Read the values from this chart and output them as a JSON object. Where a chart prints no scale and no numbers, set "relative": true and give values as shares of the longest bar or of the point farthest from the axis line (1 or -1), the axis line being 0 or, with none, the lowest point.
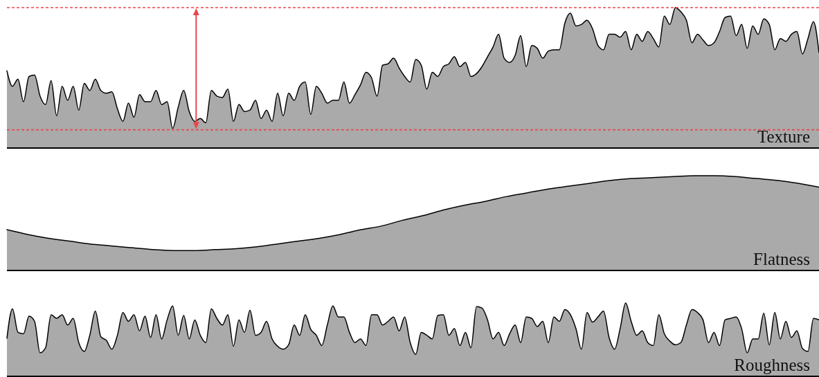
{
  "chart_data": [
    {
      "type": "area",
      "title": "Texture",
      "relative": true,
      "color": "#aaaaaa",
      "categories": [
        null,
        null,
        null,
        null,
        null,
        null,
        null,
        null,
        null,
        null,
        null,
        null,
        null,
        null,
        null,
        null,
        null,
        null,
        null,
        null,
        null,
        null,
        null,
        null,
        null,
        null,
        null,
        null,
        null,
        null,
        null,
        null,
        null,
        null,
        null,
        null,
        null,
        null,
        null,
        null,
        null,
        null,
        null,
        null,
        null,
        null,
        null,
        null,
        null,
        null,
        null,
        null,
        null,
        null,
        null,
        null,
        null,
        null,
        null,
        null,
        null,
        null,
        null,
        null,
        null,
        null,
        null,
        null,
        null,
        null,
        null,
        null,
        null,
        null,
        null,
        null,
        null,
        null,
        null,
        null,
        null,
        null,
        null,
        null,
        null,
        null,
        null,
        null,
        null,
        null,
        null,
        null,
        null,
        null,
        null,
        null,
        null,
        null,
        null,
        null,
        null,
        null,
        null,
        null,
        null,
        null,
        null,
        null,
        null,
        null,
        null,
        null,
        null,
        null,
        null,
        null,
        null,
        null,
        null,
        null,
        null,
        null,
        null,
        null,
        null,
        null,
        null,
        null,
        null,
        null,
        null,
        null,
        null,
        null,
        null,
        null,
        null,
        null,
        null,
        null,
        null,
        null,
        null,
        null,
        null,
        null,
        null,
        null
      ],
      "values": [
        0.55,
        0.44,
        0.49,
        0.33,
        0.51,
        0.52,
        0.37,
        0.31,
        0.48,
        0.23,
        0.44,
        0.34,
        0.44,
        0.27,
        0.46,
        0.41,
        0.49,
        0.41,
        0.39,
        0.4,
        0.28,
        0.19,
        0.32,
        0.22,
        0.38,
        0.33,
        0.33,
        0.41,
        0.31,
        0.33,
        0.14,
        0.29,
        0.41,
        0.26,
        0.19,
        0.21,
        0.18,
        0.41,
        0.37,
        0.36,
        0.42,
        0.19,
        0.31,
        0.26,
        0.27,
        0.34,
        0.21,
        0.27,
        0.19,
        0.39,
        0.23,
        0.39,
        0.34,
        0.44,
        0.47,
        0.24,
        0.44,
        0.39,
        0.32,
        0.34,
        0.34,
        0.47,
        0.32,
        0.38,
        0.45,
        0.54,
        0.5,
        0.37,
        0.59,
        0.6,
        0.64,
        0.57,
        0.51,
        0.47,
        0.63,
        0.59,
        0.42,
        0.54,
        0.51,
        0.58,
        0.6,
        0.65,
        0.58,
        0.61,
        0.51,
        0.53,
        0.58,
        0.65,
        0.72,
        0.81,
        0.64,
        0.61,
        0.66,
        0.8,
        0.58,
        0.73,
        0.71,
        0.64,
        0.69,
        0.7,
        0.7,
        0.89,
        0.96,
        0.87,
        0.88,
        0.91,
        0.85,
        0.73,
        0.7,
        0.81,
        0.81,
        0.79,
        0.83,
        0.7,
        0.81,
        0.76,
        0.83,
        0.78,
        0.72,
        0.94,
        0.88,
        1,
        0.97,
        0.91,
        0.75,
        0.81,
        0.77,
        0.73,
        0.75,
        0.83,
        0.93,
        0.94,
        0.8,
        0.88,
        0.71,
        0.87,
        0.81,
        0.92,
        0.88,
        0.7,
        0.78,
        0.76,
        0.81,
        0.83,
        0.67,
        0.78,
        0.9,
        0.68
      ],
      "ref_lines": [
        {
          "axis": "y",
          "value": 1,
          "color": "#e8474c",
          "line_style": "dashed"
        },
        {
          "axis": "y",
          "value": 0.13,
          "color": "#e8474c",
          "line_style": "dashed"
        }
      ]
    },
    {
      "type": "area",
      "title": "Flatness",
      "relative": true,
      "color": "#aaaaaa",
      "categories": [
        null,
        null,
        null,
        null,
        null,
        null,
        null,
        null,
        null,
        null,
        null,
        null,
        null,
        null,
        null,
        null,
        null,
        null,
        null,
        null,
        null,
        null,
        null,
        null,
        null,
        null,
        null,
        null,
        null,
        null,
        null,
        null,
        null,
        null,
        null,
        null,
        null,
        null,
        null,
        null
      ],
      "values": [
        0.43,
        0.38,
        0.34,
        0.31,
        0.28,
        0.26,
        0.24,
        0.22,
        0.21,
        0.21,
        0.22,
        0.23,
        0.25,
        0.28,
        0.31,
        0.34,
        0.38,
        0.43,
        0.47,
        0.53,
        0.58,
        0.64,
        0.69,
        0.73,
        0.78,
        0.82,
        0.86,
        0.89,
        0.92,
        0.95,
        0.97,
        0.98,
        0.99,
        1,
        1,
        0.99,
        0.97,
        0.95,
        0.92,
        0.88
      ]
    },
    {
      "type": "area",
      "title": "Roughness",
      "relative": true,
      "color": "#aaaaaa",
      "categories": [
        null,
        null,
        null,
        null,
        null,
        null,
        null,
        null,
        null,
        null,
        null,
        null,
        null,
        null,
        null,
        null,
        null,
        null,
        null,
        null,
        null,
        null,
        null,
        null,
        null,
        null,
        null,
        null,
        null,
        null,
        null,
        null,
        null,
        null,
        null,
        null,
        null,
        null,
        null,
        null,
        null,
        null,
        null,
        null,
        null,
        null,
        null,
        null,
        null,
        null,
        null,
        null,
        null,
        null,
        null,
        null,
        null,
        null,
        null,
        null,
        null,
        null,
        null,
        null,
        null,
        null,
        null,
        null,
        null,
        null,
        null,
        null,
        null,
        null,
        null,
        null,
        null,
        null,
        null,
        null,
        null,
        null,
        null,
        null,
        null,
        null,
        null,
        null,
        null,
        null,
        null,
        null,
        null,
        null,
        null,
        null,
        null,
        null,
        null,
        null,
        null,
        null,
        null,
        null,
        null,
        null,
        null,
        null,
        null,
        null,
        null,
        null,
        null,
        null,
        null,
        null,
        null,
        null,
        null,
        null,
        null,
        null,
        null,
        null,
        null,
        null,
        null,
        null,
        null,
        null,
        null,
        null,
        null,
        null,
        null,
        null,
        null,
        null,
        null,
        null,
        null,
        null,
        null,
        null,
        null,
        null,
        null,
        null
      ],
      "values": [
        0.52,
        0.92,
        0.6,
        0.58,
        0.82,
        0.75,
        0.32,
        0.39,
        0.84,
        0.79,
        0.84,
        0.7,
        0.79,
        0.46,
        0.34,
        0.56,
        0.89,
        0.54,
        0.49,
        0.37,
        0.56,
        0.87,
        0.75,
        0.84,
        0.62,
        0.82,
        0.53,
        0.84,
        0.51,
        0.77,
        0.96,
        0.56,
        0.83,
        0.51,
        0.77,
        0.56,
        0.46,
        0.92,
        0.79,
        0.7,
        0.84,
        0.41,
        0.77,
        0.6,
        0.9,
        0.56,
        0.6,
        0.75,
        0.51,
        0.41,
        0.37,
        0.43,
        0.7,
        0.56,
        0.84,
        0.64,
        0.56,
        0.42,
        0.7,
        0.96,
        0.81,
        0.81,
        0.6,
        0.46,
        0.51,
        0.42,
        0.84,
        0.84,
        0.7,
        0.75,
        0.81,
        0.62,
        0.81,
        0.46,
        0.3,
        0.6,
        0.56,
        0.51,
        0.83,
        0.84,
        0.56,
        0.65,
        0.42,
        0.6,
        0.39,
        0.95,
        0.93,
        0.77,
        0.51,
        0.6,
        0.42,
        0.58,
        0.7,
        0.46,
        0.81,
        0.79,
        0.68,
        0.75,
        0.46,
        0.81,
        0.75,
        0.91,
        0.84,
        0.65,
        0.37,
        0.87,
        0.74,
        0.81,
        0.89,
        0.53,
        0.37,
        0.65,
        1,
        0.75,
        0.56,
        0.62,
        0.46,
        0.42,
        0.84,
        0.58,
        0.48,
        0.43,
        0.46,
        0.7,
        0.91,
        0.87,
        0.77,
        0.46,
        0.6,
        0.42,
        0.77,
        0.79,
        0.81,
        0.65,
        0.32,
        0.51,
        0.51,
        0.86,
        0.43,
        0.87,
        0.51,
        0.75,
        0.53,
        0.62,
        0.38,
        0.34,
        0.79,
        0.77
      ]
    }
  ]
}
